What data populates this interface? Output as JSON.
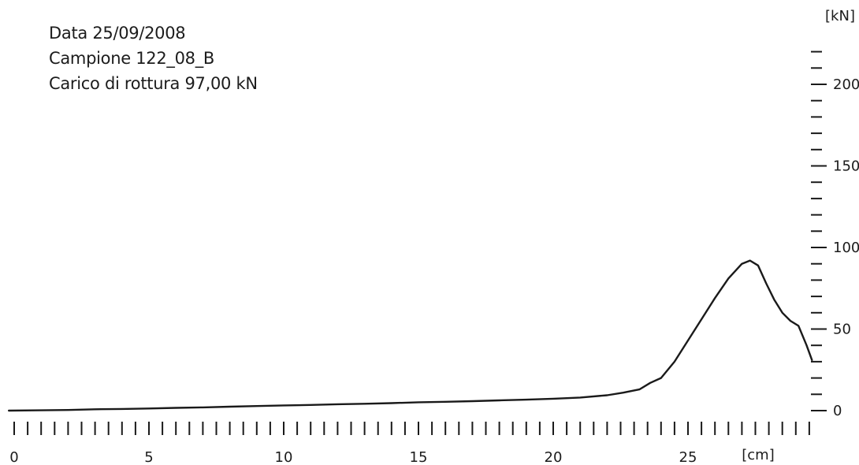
{
  "header": {
    "date": "Data 25/09/2008",
    "sample": "Campione 122_08_B",
    "break_load": "Carico di rottura 97,00 kN"
  },
  "chart_data": {
    "type": "line",
    "title": "",
    "xlabel": "",
    "ylabel": "",
    "x_unit": "[cm]",
    "y_unit": "[kN]",
    "xlim": [
      0,
      29.5
    ],
    "ylim": [
      0,
      220
    ],
    "x_ticks": [
      0,
      5,
      10,
      15,
      20,
      25
    ],
    "y_ticks": [
      0,
      50,
      100,
      150,
      200
    ],
    "x_minor_step": 0.5,
    "y_minor_step": 10,
    "grid": false,
    "line_color": "#1a1a1a",
    "series": [
      {
        "x": [
          -0.2,
          1.0,
          2.0,
          3.0,
          4.0,
          5.0,
          6.0,
          7.0,
          8.0,
          9.0,
          10.0,
          11.0,
          12.0,
          13.0,
          14.0,
          15.0,
          16.0,
          17.0,
          18.0,
          19.0,
          20.0,
          21.0,
          22.0,
          22.6,
          23.2,
          23.6,
          24.0,
          24.5,
          25.0,
          25.5,
          26.0,
          26.5,
          27.0,
          27.3,
          27.6,
          27.9,
          28.2,
          28.5,
          28.8,
          29.1,
          29.4,
          29.6
        ],
        "y": [
          0.0,
          0.2,
          0.4,
          0.8,
          1.0,
          1.3,
          1.7,
          2.0,
          2.4,
          2.8,
          3.2,
          3.5,
          3.9,
          4.2,
          4.6,
          5.1,
          5.4,
          5.8,
          6.3,
          6.7,
          7.3,
          8.0,
          9.4,
          11.0,
          13.0,
          17.0,
          20.0,
          30.0,
          43.0,
          56.0,
          69.0,
          81.0,
          90.0,
          92.0,
          89.0,
          78.0,
          68.0,
          60.0,
          55.0,
          52.0,
          40.0,
          31.0
        ]
      }
    ]
  }
}
